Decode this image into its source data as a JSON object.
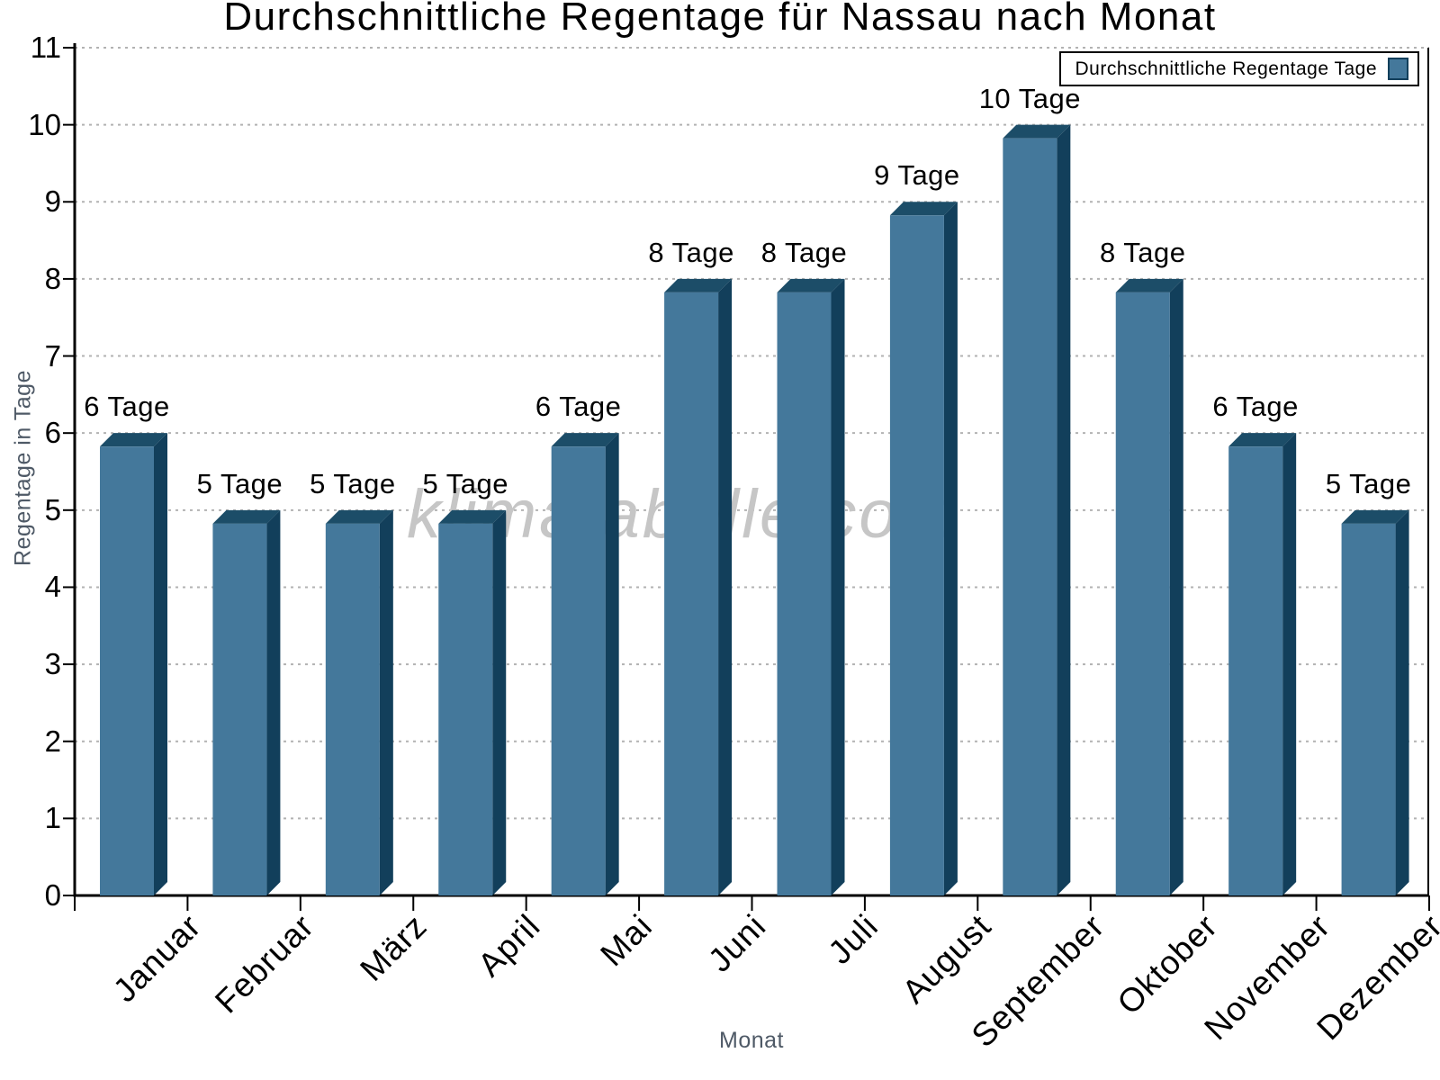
{
  "watermark": "klimatabelle.com",
  "chart_data": {
    "type": "bar",
    "title": "Durchschnittliche Regentage für Nassau nach Monat",
    "xlabel": "Monat",
    "ylabel": "Regentage in Tage",
    "legend_label": "Durchschnittliche Regentage Tage",
    "legend_position": "top-right",
    "categories": [
      "Januar",
      "Februar",
      "März",
      "April",
      "Mai",
      "Juni",
      "Juli",
      "August",
      "September",
      "Oktober",
      "November",
      "Dezember"
    ],
    "values": [
      6,
      5,
      5,
      5,
      6,
      8,
      8,
      9,
      10,
      8,
      6,
      5
    ],
    "bar_labels": [
      "6 Tage",
      "5 Tage",
      "5 Tage",
      "5 Tage",
      "6 Tage",
      "8 Tage",
      "8 Tage",
      "9 Tage",
      "10 Tage",
      "8 Tage",
      "6 Tage",
      "5 Tage"
    ],
    "unit_suffix": " Tage",
    "ylim": [
      0,
      11
    ],
    "ytick_step": 1,
    "yticks": [
      0,
      1,
      2,
      3,
      4,
      5,
      6,
      7,
      8,
      9,
      10,
      11
    ],
    "grid": "horizontal-dotted",
    "bar_style": "3d-extruded",
    "colors": {
      "bar_face": "#44789B",
      "bar_top": "#1C4D68",
      "bar_side": "#123F5B",
      "grid": "#B2B2B2",
      "axis": "#000000",
      "axis_title_text": "#4E5966",
      "tick_text": "#000000",
      "watermark_text": "#C6C6C6",
      "background": "#FFFFFF"
    }
  }
}
